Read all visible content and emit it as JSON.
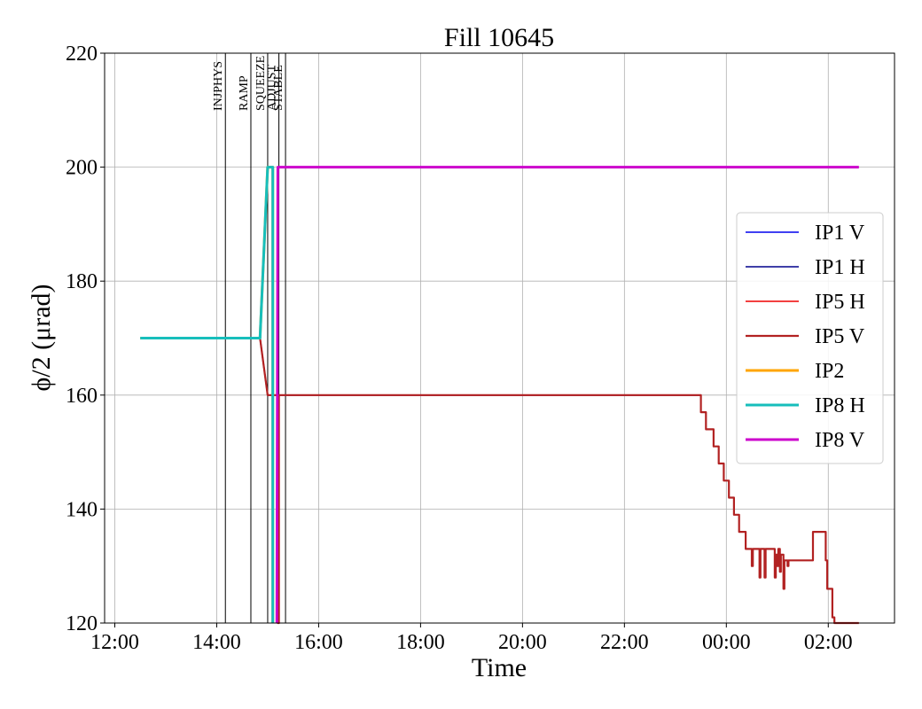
{
  "chart_data": {
    "type": "line",
    "title": "Fill 10645",
    "xlabel": "Time",
    "ylabel": "ϕ/2 (μrad)",
    "ylim": [
      120,
      220
    ],
    "yticks": [
      "120",
      "140",
      "160",
      "180",
      "200",
      "220"
    ],
    "x_range_hours": [
      11.8,
      27.3
    ],
    "xticks": [
      {
        "h": 12,
        "label": "12:00"
      },
      {
        "h": 14,
        "label": "14:00"
      },
      {
        "h": 16,
        "label": "16:00"
      },
      {
        "h": 18,
        "label": "18:00"
      },
      {
        "h": 20,
        "label": "20:00"
      },
      {
        "h": 22,
        "label": "22:00"
      },
      {
        "h": 24,
        "label": "00:00"
      },
      {
        "h": 26,
        "label": "02:00"
      }
    ],
    "grid": true,
    "legend_position": "center-right",
    "phases": [
      {
        "name": "INJPHYS",
        "h": 14.17
      },
      {
        "name": "RAMP",
        "h": 14.67
      },
      {
        "name": "SQUEEZE",
        "h": 15.0
      },
      {
        "name": "ADJUST",
        "h": 15.22
      },
      {
        "name": "STABLE",
        "h": 15.35
      }
    ],
    "series": [
      {
        "name": "IP1 V",
        "color": "#0000ee",
        "width": 1.6,
        "points": [
          [
            14.85,
            170
          ],
          [
            15.0,
            160
          ],
          [
            23.5,
            160
          ]
        ]
      },
      {
        "name": "IP1 H",
        "color": "#00008b",
        "width": 1.6,
        "points": [
          [
            14.85,
            170
          ],
          [
            15.0,
            160
          ],
          [
            23.5,
            160
          ]
        ]
      },
      {
        "name": "IP5 H",
        "color": "#ee0000",
        "width": 1.6,
        "points": [
          [
            14.85,
            170
          ],
          [
            15.0,
            160
          ],
          [
            23.5,
            160
          ]
        ]
      },
      {
        "name": "IP5 V",
        "color": "#b22222",
        "width": 2.2,
        "points": [
          [
            14.85,
            170
          ],
          [
            15.0,
            160
          ],
          [
            15.2,
            160
          ],
          [
            15.2,
            120
          ],
          [
            15.22,
            120
          ],
          [
            15.22,
            160
          ],
          [
            23.5,
            160
          ],
          [
            23.5,
            157
          ],
          [
            23.6,
            157
          ],
          [
            23.6,
            154
          ],
          [
            23.75,
            154
          ],
          [
            23.75,
            151
          ],
          [
            23.85,
            151
          ],
          [
            23.85,
            148
          ],
          [
            23.95,
            148
          ],
          [
            23.95,
            145
          ],
          [
            24.05,
            145
          ],
          [
            24.05,
            142
          ],
          [
            24.15,
            142
          ],
          [
            24.15,
            139
          ],
          [
            24.25,
            139
          ],
          [
            24.25,
            136
          ],
          [
            24.38,
            136
          ],
          [
            24.38,
            133
          ],
          [
            24.5,
            133
          ],
          [
            24.5,
            130
          ],
          [
            24.52,
            130
          ],
          [
            24.52,
            133
          ],
          [
            24.65,
            133
          ],
          [
            24.65,
            128
          ],
          [
            24.67,
            128
          ],
          [
            24.67,
            133
          ],
          [
            24.75,
            133
          ],
          [
            24.75,
            128
          ],
          [
            24.77,
            128
          ],
          [
            24.77,
            133
          ],
          [
            24.95,
            133
          ],
          [
            24.95,
            128
          ],
          [
            24.97,
            128
          ],
          [
            24.97,
            132
          ],
          [
            25.0,
            132
          ],
          [
            25.0,
            130
          ],
          [
            25.02,
            130
          ],
          [
            25.02,
            133
          ],
          [
            25.05,
            133
          ],
          [
            25.05,
            129
          ],
          [
            25.07,
            129
          ],
          [
            25.07,
            132
          ],
          [
            25.12,
            132
          ],
          [
            25.12,
            126
          ],
          [
            25.14,
            126
          ],
          [
            25.14,
            131
          ],
          [
            25.2,
            131
          ],
          [
            25.2,
            130
          ],
          [
            25.22,
            130
          ],
          [
            25.22,
            131
          ],
          [
            25.7,
            131
          ],
          [
            25.7,
            136
          ],
          [
            25.95,
            136
          ],
          [
            25.95,
            131
          ],
          [
            25.98,
            131
          ],
          [
            25.98,
            126
          ],
          [
            26.08,
            126
          ],
          [
            26.08,
            121
          ],
          [
            26.12,
            121
          ],
          [
            26.12,
            120
          ],
          [
            26.6,
            120
          ]
        ]
      },
      {
        "name": "IP2",
        "color": "#ffa500",
        "width": 3,
        "points": [
          [
            12.5,
            170
          ],
          [
            14.85,
            170
          ],
          [
            15.0,
            200
          ],
          [
            15.1,
            200
          ],
          [
            15.1,
            120
          ]
        ]
      },
      {
        "name": "IP8 H",
        "color": "#17bebb",
        "width": 3,
        "points": [
          [
            12.5,
            170
          ],
          [
            14.85,
            170
          ],
          [
            15.0,
            200
          ],
          [
            15.1,
            200
          ],
          [
            15.1,
            120
          ]
        ]
      },
      {
        "name": "IP8 V",
        "color": "#cc00cc",
        "width": 3,
        "points": [
          [
            15.18,
            120
          ],
          [
            15.2,
            200
          ],
          [
            26.6,
            200
          ]
        ]
      }
    ]
  }
}
